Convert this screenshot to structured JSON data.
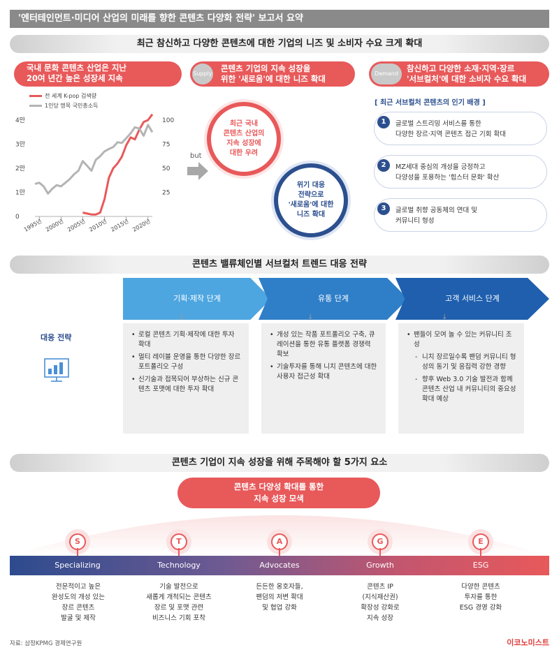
{
  "title": "'엔터테인먼트·미디어 산업의 미래를 향한 콘텐츠 다양화 전략' 보고서 요약",
  "section1": {
    "heading": "최근 참신하고 다양한 콘텐츠에 대한 기업의 니즈 및 소비자 수요 크게 확대",
    "growth_pill": [
      "국내 문화 콘텐츠 산업은 지난",
      "20여 년간 높은 성장세 지속"
    ],
    "supply": {
      "tag": "Supply",
      "text": [
        "콘텐츠 기업의 지속 성장을",
        "위한 '새로움'에 대한 니즈 확대"
      ]
    },
    "demand": {
      "tag": "Demand",
      "text": [
        "참신하고 다양한 소재·지역·장르",
        "'서브컬처'에 대한 소비자 수요 확대"
      ]
    },
    "but_label": "but",
    "concern_ring": [
      "최근 국내",
      "콘텐츠 산업의",
      "지속 성장에",
      "대한 우려"
    ],
    "response_ring": [
      "위기 대응",
      "전략으로",
      "'새로움'에 대한",
      "니즈 확대"
    ],
    "background_title": "[ 최근 서브컬처 콘텐츠의 인기 배경 ]",
    "backgrounds": [
      {
        "num": "1",
        "lines": [
          "글로벌 스트리밍 서비스를 통한",
          "다양한 장르·지역 콘텐츠 접근 기회 확대"
        ]
      },
      {
        "num": "2",
        "lines": [
          "MZ세대 중심의 개성을 긍정하고",
          "다양성을 포용하는 '힙스터 문화' 확산"
        ]
      },
      {
        "num": "3",
        "lines": [
          "글로벌 취향 공동체의 연대 및",
          "커뮤니티 형성"
        ]
      }
    ]
  },
  "chart_data": {
    "type": "line",
    "title": "",
    "x": [
      1994,
      1995,
      1996,
      1997,
      1998,
      1999,
      2000,
      2001,
      2002,
      2003,
      2004,
      2005,
      2006,
      2007,
      2008,
      2009,
      2010,
      2011,
      2012,
      2013,
      2014,
      2015,
      2016,
      2017,
      2018,
      2019,
      2020,
      2021
    ],
    "xticks": [
      "1995년",
      "2000년",
      "2005년",
      "2010년",
      "2015년",
      "2020년"
    ],
    "series": [
      {
        "name": "전 세계 K-pop 검색량",
        "axis": "right",
        "color": "#e8595a",
        "values": [
          null,
          null,
          null,
          null,
          null,
          null,
          null,
          null,
          null,
          null,
          null,
          4,
          3,
          2,
          2,
          4,
          18,
          40,
          50,
          55,
          62,
          74,
          82,
          80,
          90,
          98,
          100,
          106
        ]
      },
      {
        "name": "1인당 명목 국민총소득",
        "axis": "left",
        "color": "#b4b4b4",
        "values": [
          13500,
          14000,
          12500,
          9500,
          11500,
          13000,
          12500,
          14000,
          15500,
          17500,
          19000,
          23000,
          21000,
          19000,
          23500,
          25000,
          27000,
          28000,
          28800,
          30800,
          30500,
          32500,
          34500,
          37000,
          36500,
          33500,
          38000,
          35000
        ]
      }
    ],
    "yticks_left": [
      "0",
      "1만",
      "2만",
      "3만",
      "4만"
    ],
    "yticks_right": [
      "25",
      "50",
      "75",
      "100"
    ],
    "ylim_left": [
      0,
      40000
    ],
    "ylim_right": [
      0,
      100
    ],
    "legend": "top-left"
  },
  "section2": {
    "heading": "콘텐츠 밸류체인별 서브컬처 트렌드 대응 전략",
    "strategy_label": "대응 전략",
    "stages": [
      {
        "name": "기획·제작 단계",
        "items": [
          {
            "text": "로컬 콘텐츠 기획·제작에 대한 투자 확대"
          },
          {
            "text": "멀티 레이블 운영을 통한 다양한 장르 포트폴리오 구성"
          },
          {
            "text": "신기술과 접목되어 부상하는 신규 콘텐츠 포맷에 대한 투자 확대"
          }
        ]
      },
      {
        "name": "유통 단계",
        "items": [
          {
            "text": "개성 있는 작품 포트폴리오 구축, 큐레이션을 통한 유통 플랫폼 경쟁력 확보"
          },
          {
            "text": "기술투자를 통해 니치 콘텐츠에 대한 사용자 접근성 확대"
          }
        ]
      },
      {
        "name": "고객 서비스 단계",
        "items": [
          {
            "text": "팬들이 모여 놀 수 있는 커뮤니티 조성"
          },
          {
            "text": "니치 장르일수록 팬덤 커뮤니티 형성의 동기 및 응집력 강한 경향",
            "sub": true
          },
          {
            "text": "향후 Web 3.0 기술 발전과 함께 콘텐츠 산업 내 커뮤니티의 중요성 확대 예상",
            "sub": true
          }
        ]
      }
    ]
  },
  "section3": {
    "heading": "콘텐츠 기업이 지속 성장을 위해 주목해야 할 5가지 요소",
    "center": [
      "콘텐츠 다양성 확대를 통한",
      "지속 성장 모색"
    ],
    "factors": [
      {
        "letter": "S",
        "name": "Specializing",
        "desc": [
          "전문적이고 높은",
          "완성도의 개성 있는",
          "장르 콘텐츠",
          "발굴 및 제작"
        ]
      },
      {
        "letter": "T",
        "name": "Technology",
        "desc": [
          "기술 발전으로",
          "새롭게 개척되는 콘텐츠",
          "장르 및 포맷 관련",
          "비즈니스 기회 포착"
        ]
      },
      {
        "letter": "A",
        "name": "Advocates",
        "desc": [
          "든든한 옹호자들,",
          "팬덤의 저변 확대",
          "및 협업 강화"
        ]
      },
      {
        "letter": "G",
        "name": "Growth",
        "desc": [
          "콘텐츠 IP",
          "(지식재산권)",
          "확장성 강화로",
          "지속 성장"
        ]
      },
      {
        "letter": "E",
        "name": "ESG",
        "desc": [
          "다양한 콘텐츠",
          "투자를 통한",
          "ESG 경영 강화"
        ]
      }
    ]
  },
  "footer": {
    "source": "자료: 삼정KPMG 경제연구원",
    "logo": "이코노미스트"
  }
}
